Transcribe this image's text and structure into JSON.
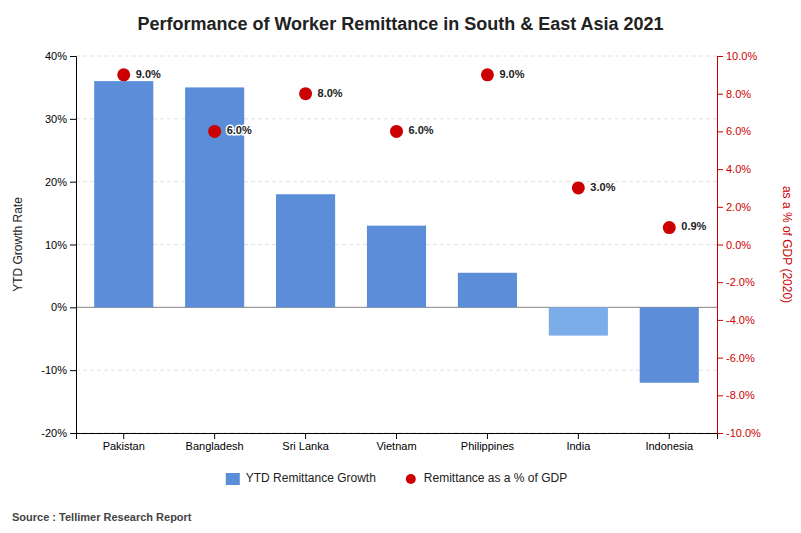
{
  "chart_data": {
    "type": "bar",
    "title": "Performance of Worker Remittance in South & East Asia 2021",
    "categories": [
      "Pakistan",
      "Bangladesh",
      "Sri Lanka",
      "Vietnam",
      "Philippines",
      "India",
      "Indonesia"
    ],
    "series": [
      {
        "name": "YTD Remittance Growth",
        "type": "bar",
        "color": "#5b8dd9",
        "colors": [
          "#5b8dd9",
          "#5b8dd9",
          "#5b8dd9",
          "#5b8dd9",
          "#5b8dd9",
          "#7baee8",
          "#5b8dd9"
        ],
        "values": [
          36,
          35,
          18,
          13,
          5.5,
          -4.5,
          -12
        ]
      },
      {
        "name": "Remittance as a % of GDP",
        "type": "scatter",
        "axis": "y2",
        "color": "#cc0000",
        "marker": "circle",
        "data_labels": true,
        "values": [
          9.0,
          6.0,
          8.0,
          6.0,
          9.0,
          3.0,
          0.9
        ],
        "value_labels": [
          "9.0%",
          "6.0%",
          "8.0%",
          "6.0%",
          "9.0%",
          "3.0%",
          "0.9%"
        ]
      }
    ],
    "ylabel": "YTD Growth Rate",
    "y2label": "as a % of GDP (2020)",
    "ylim": [
      -20,
      40
    ],
    "yticks": [
      {
        "value": -20,
        "label": "-20%"
      },
      {
        "value": -10,
        "label": "-10%"
      },
      {
        "value": 0,
        "label": "0%"
      },
      {
        "value": 10,
        "label": "10%"
      },
      {
        "value": 20,
        "label": "20%"
      },
      {
        "value": 30,
        "label": "30%"
      },
      {
        "value": 40,
        "label": "40%"
      }
    ],
    "y2lim": [
      -10,
      10
    ],
    "y2ticks": [
      {
        "value": -10.0,
        "label": "-10.0%"
      },
      {
        "value": -8.0,
        "label": "-8.0%"
      },
      {
        "value": -6.0,
        "label": "-6.0%"
      },
      {
        "value": -4.0,
        "label": "-4.0%"
      },
      {
        "value": -2.0,
        "label": "-2.0%"
      },
      {
        "value": 0.0,
        "label": "0.0%"
      },
      {
        "value": 2.0,
        "label": "2.0%"
      },
      {
        "value": 4.0,
        "label": "4.0%"
      },
      {
        "value": 6.0,
        "label": "6.0%"
      },
      {
        "value": 8.0,
        "label": "8.0%"
      },
      {
        "value": 10.0,
        "label": "10.0%"
      }
    ],
    "grid": true,
    "legend": "bottom",
    "annotations": [
      "Source : Tellimer Research Report"
    ]
  }
}
